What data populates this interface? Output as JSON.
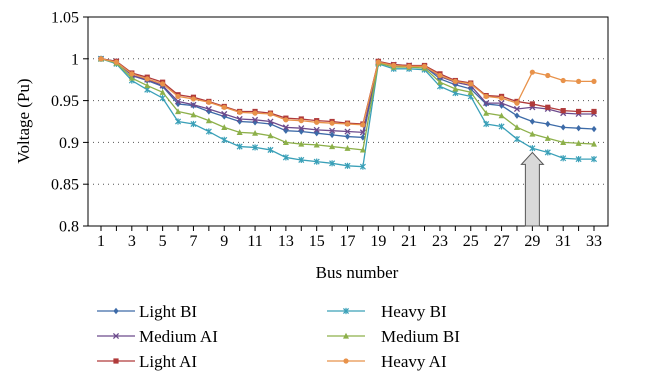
{
  "chart_data": {
    "type": "line",
    "xlabel": "Bus number",
    "ylabel": "Voltage (Pu)",
    "ylim": [
      0.8,
      1.05
    ],
    "yticks": [
      "0.8",
      "0.85",
      "0.9",
      "0.95",
      "1",
      "1.05"
    ],
    "xlim": [
      1,
      33
    ],
    "xticks": [
      "1",
      "3",
      "5",
      "7",
      "9",
      "11",
      "13",
      "15",
      "17",
      "19",
      "21",
      "23",
      "25",
      "27",
      "29",
      "31",
      "33"
    ],
    "grid": "dotted horizontal",
    "legend_position": "bottom",
    "x": [
      1,
      2,
      3,
      4,
      5,
      6,
      7,
      8,
      9,
      10,
      11,
      12,
      13,
      14,
      15,
      16,
      17,
      18,
      19,
      20,
      21,
      22,
      23,
      24,
      25,
      26,
      27,
      28,
      29,
      30,
      31,
      32,
      33
    ],
    "series": [
      {
        "name": "Light BI",
        "color": "#3d6ba8",
        "marker": "diamond",
        "values": [
          1.0,
          0.997,
          0.98,
          0.974,
          0.967,
          0.946,
          0.944,
          0.937,
          0.931,
          0.925,
          0.924,
          0.922,
          0.914,
          0.913,
          0.911,
          0.909,
          0.907,
          0.906,
          0.996,
          0.992,
          0.991,
          0.991,
          0.976,
          0.969,
          0.964,
          0.946,
          0.944,
          0.932,
          0.925,
          0.922,
          0.918,
          0.917,
          0.916
        ]
      },
      {
        "name": "Medium AI",
        "color": "#6c4a8c",
        "marker": "x",
        "values": [
          1.0,
          0.997,
          0.98,
          0.975,
          0.968,
          0.949,
          0.945,
          0.94,
          0.934,
          0.928,
          0.927,
          0.925,
          0.918,
          0.917,
          0.915,
          0.914,
          0.913,
          0.912,
          0.996,
          0.993,
          0.992,
          0.991,
          0.979,
          0.972,
          0.968,
          0.947,
          0.947,
          0.94,
          0.942,
          0.94,
          0.935,
          0.934,
          0.934
        ]
      },
      {
        "name": "Light AI",
        "color": "#b03a3a",
        "marker": "square",
        "values": [
          1.0,
          0.997,
          0.983,
          0.978,
          0.972,
          0.957,
          0.954,
          0.949,
          0.943,
          0.937,
          0.937,
          0.935,
          0.929,
          0.928,
          0.926,
          0.925,
          0.923,
          0.922,
          0.997,
          0.993,
          0.992,
          0.992,
          0.982,
          0.974,
          0.971,
          0.956,
          0.955,
          0.949,
          0.946,
          0.942,
          0.938,
          0.937,
          0.937
        ]
      },
      {
        "name": "Heavy BI",
        "color": "#3aa0b8",
        "marker": "star",
        "values": [
          1.0,
          0.994,
          0.974,
          0.963,
          0.953,
          0.925,
          0.922,
          0.913,
          0.903,
          0.895,
          0.894,
          0.891,
          0.882,
          0.879,
          0.877,
          0.875,
          0.872,
          0.871,
          0.994,
          0.988,
          0.988,
          0.987,
          0.967,
          0.959,
          0.955,
          0.922,
          0.919,
          0.904,
          0.893,
          0.888,
          0.881,
          0.88,
          0.88
        ]
      },
      {
        "name": "Medium BI",
        "color": "#8db04a",
        "marker": "triangle",
        "values": [
          1.0,
          0.995,
          0.977,
          0.968,
          0.96,
          0.937,
          0.933,
          0.926,
          0.918,
          0.912,
          0.911,
          0.908,
          0.9,
          0.898,
          0.897,
          0.895,
          0.893,
          0.891,
          0.995,
          0.99,
          0.99,
          0.989,
          0.972,
          0.964,
          0.96,
          0.935,
          0.932,
          0.918,
          0.91,
          0.905,
          0.9,
          0.899,
          0.898
        ]
      },
      {
        "name": "Heavy AI",
        "color": "#e8924a",
        "marker": "circle",
        "values": [
          1.0,
          0.996,
          0.982,
          0.976,
          0.97,
          0.955,
          0.952,
          0.948,
          0.942,
          0.936,
          0.935,
          0.934,
          0.927,
          0.926,
          0.924,
          0.923,
          0.922,
          0.921,
          0.996,
          0.992,
          0.991,
          0.991,
          0.98,
          0.973,
          0.97,
          0.955,
          0.953,
          0.947,
          0.984,
          0.98,
          0.974,
          0.973,
          0.973
        ]
      }
    ],
    "annotations": [
      {
        "type": "arrow",
        "x": 29,
        "from_y": 0.8,
        "to_y": 0.888,
        "direction": "up"
      }
    ]
  }
}
